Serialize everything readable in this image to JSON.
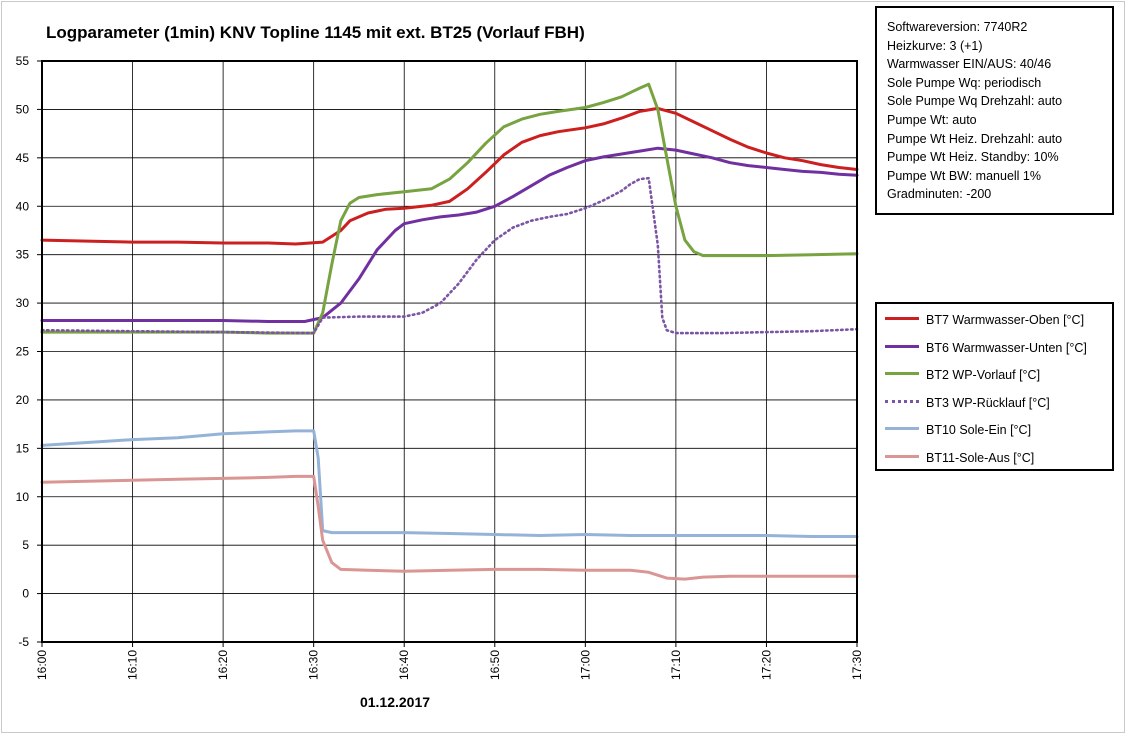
{
  "chart_data": {
    "type": "line",
    "title": "Logparameter  (1min) KNV Topline  1145 mit ext. BT25 (Vorlauf  FBH)",
    "xlabel": "01.12.2017",
    "ylabel": "",
    "ylim": [
      -5,
      55
    ],
    "yticks": [
      -5,
      0,
      5,
      10,
      15,
      20,
      25,
      30,
      35,
      40,
      45,
      50,
      55
    ],
    "x_range_minutes": [
      0,
      90
    ],
    "xtick_minutes": [
      0,
      10,
      20,
      30,
      40,
      50,
      60,
      70,
      80,
      90
    ],
    "xtick_labels": [
      "16:00",
      "16:10",
      "16:20",
      "16:30",
      "16:40",
      "16:50",
      "17:00",
      "17:10",
      "17:20",
      "17:30"
    ],
    "x_unit": "minutes after 16:00",
    "grid": true,
    "legend_position": "right",
    "series": [
      {
        "name": "BT7 Warmwasser-Oben [°C]",
        "color": "#cc1f1f",
        "dash": "solid",
        "points": [
          [
            0,
            36.5
          ],
          [
            5,
            36.4
          ],
          [
            10,
            36.3
          ],
          [
            15,
            36.3
          ],
          [
            20,
            36.2
          ],
          [
            25,
            36.2
          ],
          [
            28,
            36.1
          ],
          [
            31,
            36.3
          ],
          [
            33,
            37.5
          ],
          [
            34,
            38.5
          ],
          [
            36,
            39.3
          ],
          [
            38,
            39.7
          ],
          [
            40,
            39.8
          ],
          [
            43,
            40.1
          ],
          [
            45,
            40.5
          ],
          [
            47,
            41.8
          ],
          [
            49,
            43.5
          ],
          [
            51,
            45.3
          ],
          [
            53,
            46.6
          ],
          [
            55,
            47.3
          ],
          [
            57,
            47.7
          ],
          [
            60,
            48.1
          ],
          [
            62,
            48.5
          ],
          [
            64,
            49.1
          ],
          [
            66,
            49.8
          ],
          [
            68,
            50.1
          ],
          [
            70,
            49.6
          ],
          [
            72,
            48.7
          ],
          [
            74,
            47.8
          ],
          [
            76,
            46.9
          ],
          [
            78,
            46.1
          ],
          [
            80,
            45.5
          ],
          [
            82,
            45.0
          ],
          [
            84,
            44.7
          ],
          [
            86,
            44.3
          ],
          [
            88,
            44.0
          ],
          [
            90,
            43.8
          ]
        ]
      },
      {
        "name": "BT6 Warmwasser-Unten [°C]",
        "color": "#7030a0",
        "dash": "solid",
        "points": [
          [
            0,
            28.2
          ],
          [
            10,
            28.2
          ],
          [
            20,
            28.2
          ],
          [
            25,
            28.1
          ],
          [
            29,
            28.1
          ],
          [
            31,
            28.5
          ],
          [
            33,
            30.0
          ],
          [
            35,
            32.5
          ],
          [
            37,
            35.5
          ],
          [
            39,
            37.5
          ],
          [
            40,
            38.2
          ],
          [
            42,
            38.6
          ],
          [
            44,
            38.9
          ],
          [
            46,
            39.1
          ],
          [
            48,
            39.4
          ],
          [
            50,
            40.0
          ],
          [
            52,
            41.0
          ],
          [
            54,
            42.1
          ],
          [
            56,
            43.2
          ],
          [
            58,
            44.0
          ],
          [
            60,
            44.7
          ],
          [
            62,
            45.1
          ],
          [
            64,
            45.4
          ],
          [
            66,
            45.7
          ],
          [
            68,
            46.0
          ],
          [
            70,
            45.8
          ],
          [
            72,
            45.4
          ],
          [
            74,
            45.0
          ],
          [
            76,
            44.5
          ],
          [
            78,
            44.2
          ],
          [
            80,
            44.0
          ],
          [
            82,
            43.8
          ],
          [
            84,
            43.6
          ],
          [
            86,
            43.5
          ],
          [
            88,
            43.3
          ],
          [
            90,
            43.2
          ]
        ]
      },
      {
        "name": "BT2 WP-Vorlauf [°C]",
        "color": "#77a340",
        "dash": "solid",
        "points": [
          [
            0,
            27.0
          ],
          [
            10,
            27.0
          ],
          [
            20,
            27.0
          ],
          [
            25,
            26.9
          ],
          [
            30,
            26.9
          ],
          [
            31,
            29.0
          ],
          [
            32,
            34.0
          ],
          [
            33,
            38.5
          ],
          [
            34,
            40.3
          ],
          [
            35,
            40.9
          ],
          [
            37,
            41.2
          ],
          [
            40,
            41.5
          ],
          [
            43,
            41.8
          ],
          [
            45,
            42.8
          ],
          [
            47,
            44.5
          ],
          [
            49,
            46.5
          ],
          [
            51,
            48.2
          ],
          [
            53,
            49.0
          ],
          [
            55,
            49.5
          ],
          [
            57,
            49.8
          ],
          [
            60,
            50.2
          ],
          [
            62,
            50.7
          ],
          [
            64,
            51.3
          ],
          [
            66,
            52.2
          ],
          [
            67,
            52.6
          ],
          [
            68,
            50.0
          ],
          [
            69,
            45.0
          ],
          [
            70,
            40.0
          ],
          [
            71,
            36.5
          ],
          [
            72,
            35.3
          ],
          [
            73,
            34.9
          ],
          [
            80,
            34.9
          ],
          [
            85,
            35.0
          ],
          [
            90,
            35.1
          ]
        ]
      },
      {
        "name": "BT3 WP-Rücklauf [°C]",
        "color": "#7b54a3",
        "dash": "dotted",
        "points": [
          [
            0,
            27.2
          ],
          [
            10,
            27.1
          ],
          [
            20,
            27.0
          ],
          [
            30,
            26.9
          ],
          [
            31,
            28.5
          ],
          [
            35,
            28.6
          ],
          [
            40,
            28.6
          ],
          [
            42,
            29.0
          ],
          [
            44,
            30.0
          ],
          [
            46,
            32.0
          ],
          [
            48,
            34.5
          ],
          [
            50,
            36.5
          ],
          [
            52,
            37.8
          ],
          [
            54,
            38.5
          ],
          [
            56,
            38.9
          ],
          [
            58,
            39.2
          ],
          [
            60,
            39.8
          ],
          [
            62,
            40.6
          ],
          [
            64,
            41.6
          ],
          [
            65,
            42.3
          ],
          [
            66,
            42.8
          ],
          [
            67,
            42.9
          ],
          [
            68,
            36.0
          ],
          [
            68.5,
            28.5
          ],
          [
            69,
            27.2
          ],
          [
            70,
            26.9
          ],
          [
            75,
            26.9
          ],
          [
            80,
            27.0
          ],
          [
            85,
            27.1
          ],
          [
            90,
            27.3
          ]
        ]
      },
      {
        "name": "BT10 Sole-Ein [°C]",
        "color": "#95b3d7",
        "dash": "solid",
        "points": [
          [
            0,
            15.3
          ],
          [
            5,
            15.6
          ],
          [
            10,
            15.9
          ],
          [
            15,
            16.1
          ],
          [
            20,
            16.5
          ],
          [
            25,
            16.7
          ],
          [
            28,
            16.8
          ],
          [
            30,
            16.8
          ],
          [
            30.5,
            14.0
          ],
          [
            31,
            6.5
          ],
          [
            32,
            6.3
          ],
          [
            40,
            6.3
          ],
          [
            45,
            6.2
          ],
          [
            50,
            6.1
          ],
          [
            55,
            6.0
          ],
          [
            60,
            6.1
          ],
          [
            65,
            6.0
          ],
          [
            70,
            6.0
          ],
          [
            75,
            6.0
          ],
          [
            80,
            6.0
          ],
          [
            85,
            5.9
          ],
          [
            90,
            5.9
          ]
        ]
      },
      {
        "name": "BT11-Sole-Aus [°C]",
        "color": "#d99694",
        "dash": "solid",
        "points": [
          [
            0,
            11.5
          ],
          [
            5,
            11.6
          ],
          [
            10,
            11.7
          ],
          [
            15,
            11.8
          ],
          [
            20,
            11.9
          ],
          [
            25,
            12.0
          ],
          [
            28,
            12.1
          ],
          [
            30,
            12.1
          ],
          [
            30.5,
            9.0
          ],
          [
            31,
            5.5
          ],
          [
            32,
            3.2
          ],
          [
            33,
            2.5
          ],
          [
            36,
            2.4
          ],
          [
            40,
            2.3
          ],
          [
            45,
            2.4
          ],
          [
            50,
            2.5
          ],
          [
            55,
            2.5
          ],
          [
            60,
            2.4
          ],
          [
            65,
            2.4
          ],
          [
            67,
            2.2
          ],
          [
            69,
            1.6
          ],
          [
            71,
            1.5
          ],
          [
            73,
            1.7
          ],
          [
            76,
            1.8
          ],
          [
            80,
            1.8
          ],
          [
            85,
            1.8
          ],
          [
            90,
            1.8
          ]
        ]
      }
    ]
  },
  "info": {
    "lines": [
      "Softwareversion: 7740R2",
      "Heizkurve: 3 (+1)",
      "Warmwasser EIN/AUS: 40/46",
      "Sole Pumpe Wq: periodisch",
      "Sole Pumpe Wq Drehzahl: auto",
      "Pumpe Wt: auto",
      "Pumpe Wt Heiz. Drehzahl: auto",
      "Pumpe Wt Heiz. Standby: 10%",
      "Pumpe Wt BW: manuell 1%",
      "Gradminuten: -200"
    ]
  }
}
